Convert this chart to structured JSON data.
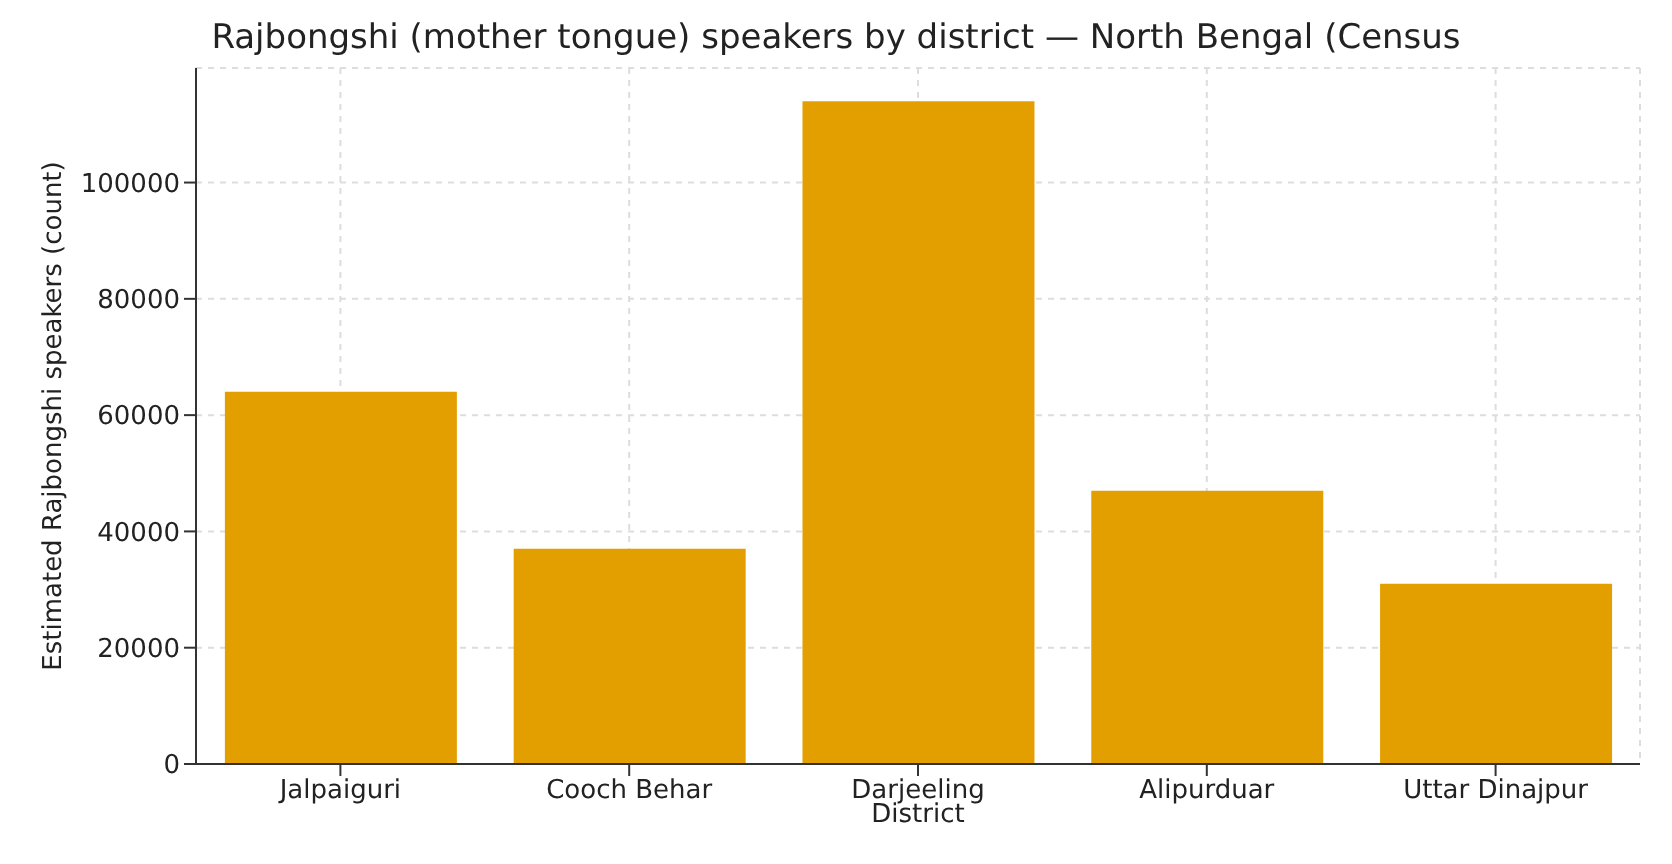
{
  "chart_data": {
    "type": "bar",
    "title": "Rajbongshi (mother tongue) speakers by district — North Bengal (Census",
    "xlabel": "District",
    "ylabel": "Estimated Rajbongshi speakers (count)",
    "categories": [
      "Jalpaiguri",
      "Cooch Behar",
      "Darjeeling",
      "Alipurduar",
      "Uttar Dinajpur"
    ],
    "values": [
      64000,
      37000,
      114000,
      47000,
      31000
    ],
    "color": "#e39f00",
    "ylim": [
      0,
      119700
    ],
    "yticks": [
      0,
      20000,
      40000,
      60000,
      80000,
      100000
    ],
    "grid": true
  }
}
